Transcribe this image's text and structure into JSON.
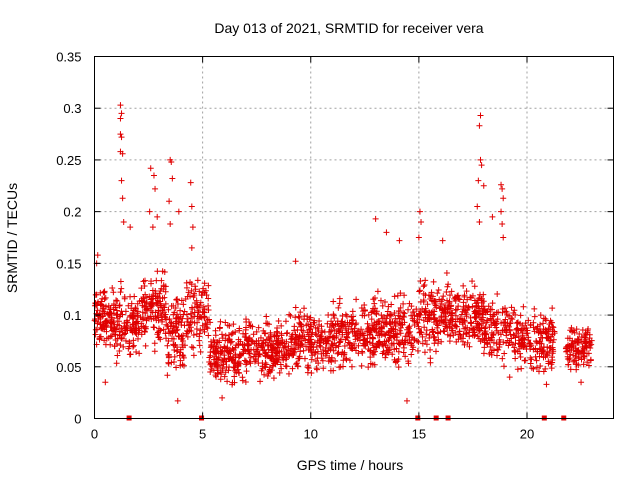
{
  "chart_data": {
    "type": "scatter",
    "title": "Day 013 of 2021, SRMTID for receiver vera",
    "xlabel": "GPS time / hours",
    "ylabel": "SRMTID / TECUs",
    "xlim": [
      0,
      24
    ],
    "ylim": [
      0,
      0.35
    ],
    "grid": true,
    "marker": "+",
    "color": "#e00000",
    "xticks": [
      {
        "value": 0,
        "label": "0"
      },
      {
        "value": 5,
        "label": "5"
      },
      {
        "value": 10,
        "label": "10"
      },
      {
        "value": 15,
        "label": "15"
      },
      {
        "value": 20,
        "label": "20"
      }
    ],
    "yticks": [
      {
        "value": 0,
        "label": "0"
      },
      {
        "value": 0.05,
        "label": "0.05"
      },
      {
        "value": 0.1,
        "label": "0.1"
      },
      {
        "value": 0.15,
        "label": "0.15"
      },
      {
        "value": 0.2,
        "label": "0.2"
      },
      {
        "value": 0.25,
        "label": "0.25"
      },
      {
        "value": 0.3,
        "label": "0.3"
      },
      {
        "value": 0.35,
        "label": "0.35"
      }
    ],
    "zero_markers_x": [
      1.6,
      4.95,
      14.95,
      15.8,
      16.35,
      20.8,
      21.7
    ],
    "highlights": [
      {
        "x": 1.2,
        "y": 0.303
      },
      {
        "x": 1.25,
        "y": 0.295
      },
      {
        "x": 1.2,
        "y": 0.29
      },
      {
        "x": 1.2,
        "y": 0.275
      },
      {
        "x": 1.25,
        "y": 0.272
      },
      {
        "x": 1.2,
        "y": 0.258
      },
      {
        "x": 1.3,
        "y": 0.256
      },
      {
        "x": 1.25,
        "y": 0.23
      },
      {
        "x": 1.3,
        "y": 0.213
      },
      {
        "x": 1.35,
        "y": 0.19
      },
      {
        "x": 1.65,
        "y": 0.185
      },
      {
        "x": 2.6,
        "y": 0.242
      },
      {
        "x": 2.75,
        "y": 0.235
      },
      {
        "x": 2.8,
        "y": 0.222
      },
      {
        "x": 2.55,
        "y": 0.2
      },
      {
        "x": 2.9,
        "y": 0.195
      },
      {
        "x": 2.7,
        "y": 0.185
      },
      {
        "x": 3.5,
        "y": 0.25
      },
      {
        "x": 3.55,
        "y": 0.248
      },
      {
        "x": 3.6,
        "y": 0.232
      },
      {
        "x": 3.45,
        "y": 0.21
      },
      {
        "x": 3.5,
        "y": 0.188
      },
      {
        "x": 3.9,
        "y": 0.2
      },
      {
        "x": 4.45,
        "y": 0.228
      },
      {
        "x": 4.5,
        "y": 0.205
      },
      {
        "x": 4.55,
        "y": 0.185
      },
      {
        "x": 4.5,
        "y": 0.165
      },
      {
        "x": 0.15,
        "y": 0.158
      },
      {
        "x": 0.1,
        "y": 0.15
      },
      {
        "x": 0.5,
        "y": 0.035
      },
      {
        "x": 3.85,
        "y": 0.017
      },
      {
        "x": 5.9,
        "y": 0.02
      },
      {
        "x": 13.0,
        "y": 0.193
      },
      {
        "x": 13.5,
        "y": 0.18
      },
      {
        "x": 14.1,
        "y": 0.172
      },
      {
        "x": 15.05,
        "y": 0.2
      },
      {
        "x": 15.1,
        "y": 0.19
      },
      {
        "x": 15.0,
        "y": 0.175
      },
      {
        "x": 16.1,
        "y": 0.172
      },
      {
        "x": 9.3,
        "y": 0.152
      },
      {
        "x": 14.45,
        "y": 0.017
      },
      {
        "x": 17.85,
        "y": 0.293
      },
      {
        "x": 17.8,
        "y": 0.283
      },
      {
        "x": 17.85,
        "y": 0.25
      },
      {
        "x": 17.9,
        "y": 0.245
      },
      {
        "x": 17.75,
        "y": 0.23
      },
      {
        "x": 18.0,
        "y": 0.225
      },
      {
        "x": 17.7,
        "y": 0.205
      },
      {
        "x": 17.8,
        "y": 0.19
      },
      {
        "x": 18.8,
        "y": 0.226
      },
      {
        "x": 18.85,
        "y": 0.222
      },
      {
        "x": 18.9,
        "y": 0.213
      },
      {
        "x": 18.8,
        "y": 0.2
      },
      {
        "x": 18.85,
        "y": 0.188
      },
      {
        "x": 18.9,
        "y": 0.175
      },
      {
        "x": 18.4,
        "y": 0.195
      },
      {
        "x": 19.2,
        "y": 0.04
      },
      {
        "x": 20.9,
        "y": 0.033
      },
      {
        "x": 22.5,
        "y": 0.035
      }
    ],
    "bands": [
      {
        "x0": 0.0,
        "x1": 1.0,
        "ymin": 0.06,
        "ymax": 0.135,
        "n": 120
      },
      {
        "x0": 1.0,
        "x1": 2.2,
        "ymin": 0.045,
        "ymax": 0.14,
        "n": 120
      },
      {
        "x0": 2.2,
        "x1": 3.3,
        "ymin": 0.05,
        "ymax": 0.16,
        "n": 120
      },
      {
        "x0": 3.3,
        "x1": 4.2,
        "ymin": 0.03,
        "ymax": 0.14,
        "n": 100
      },
      {
        "x0": 4.2,
        "x1": 5.3,
        "ymin": 0.05,
        "ymax": 0.15,
        "n": 100
      },
      {
        "x0": 5.3,
        "x1": 7.0,
        "ymin": 0.025,
        "ymax": 0.1,
        "n": 180
      },
      {
        "x0": 7.0,
        "x1": 9.0,
        "ymin": 0.03,
        "ymax": 0.105,
        "n": 200
      },
      {
        "x0": 9.0,
        "x1": 11.0,
        "ymin": 0.035,
        "ymax": 0.115,
        "n": 200
      },
      {
        "x0": 11.0,
        "x1": 13.0,
        "ymin": 0.04,
        "ymax": 0.125,
        "n": 200
      },
      {
        "x0": 13.0,
        "x1": 15.0,
        "ymin": 0.04,
        "ymax": 0.13,
        "n": 200
      },
      {
        "x0": 15.0,
        "x1": 16.5,
        "ymin": 0.05,
        "ymax": 0.145,
        "n": 160
      },
      {
        "x0": 16.5,
        "x1": 18.0,
        "ymin": 0.06,
        "ymax": 0.14,
        "n": 160
      },
      {
        "x0": 18.0,
        "x1": 20.0,
        "ymin": 0.04,
        "ymax": 0.125,
        "n": 180
      },
      {
        "x0": 20.0,
        "x1": 21.3,
        "ymin": 0.035,
        "ymax": 0.115,
        "n": 120
      },
      {
        "x0": 21.8,
        "x1": 23.0,
        "ymin": 0.04,
        "ymax": 0.1,
        "n": 110
      }
    ]
  }
}
